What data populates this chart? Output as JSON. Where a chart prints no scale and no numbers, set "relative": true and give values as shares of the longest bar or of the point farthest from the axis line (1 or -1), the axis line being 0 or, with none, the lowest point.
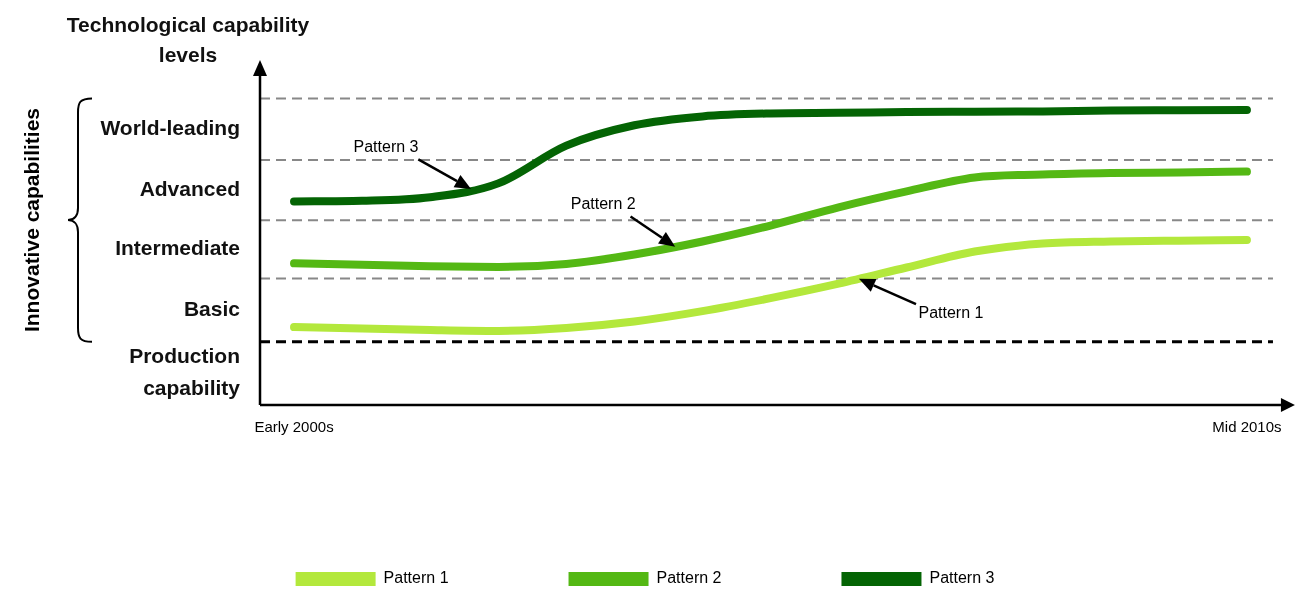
{
  "chart_data": {
    "type": "line",
    "ylabel": "Technological capability levels",
    "relative": true,
    "categories": [
      "Early 2000s",
      null,
      null,
      null,
      null,
      null,
      null,
      null,
      null,
      null,
      null,
      null,
      null,
      null,
      "Mid 2010s"
    ],
    "series": [
      {
        "name": "Pattern 1",
        "color": "#b3e83c",
        "values": [
          0.264,
          0.259,
          0.254,
          0.251,
          0.261,
          0.283,
          0.318,
          0.362,
          0.411,
          0.466,
          0.52,
          0.547,
          0.554,
          0.557,
          0.559
        ]
      },
      {
        "name": "Pattern 2",
        "color": "#54b814",
        "values": [
          0.48,
          0.475,
          0.47,
          0.468,
          0.478,
          0.51,
          0.554,
          0.608,
          0.67,
          0.724,
          0.771,
          0.781,
          0.786,
          0.788,
          0.791
        ]
      },
      {
        "name": "Pattern 3",
        "color": "#046404",
        "values": [
          0.69,
          0.692,
          0.704,
          0.751,
          0.879,
          0.948,
          0.978,
          0.988,
          0.99,
          0.993,
          0.994,
          0.995,
          0.998,
          0.999,
          1
        ]
      }
    ],
    "ref_lines": [
      {
        "axis": "y",
        "value": 0.214,
        "color": "#000000",
        "line_style": "dashed"
      },
      {
        "axis": "y",
        "value": 0.429,
        "color": "#888888",
        "line_style": "dashed"
      },
      {
        "axis": "y",
        "value": 0.626,
        "color": "#888888",
        "line_style": "dashed"
      },
      {
        "axis": "y",
        "value": 0.83,
        "color": "#888888",
        "line_style": "dashed"
      },
      {
        "axis": "y",
        "value": 1.039,
        "color": "#888888",
        "line_style": "dashed"
      }
    ],
    "annotations": [
      "Pattern 1",
      "Pattern 2",
      "Pattern 3",
      "Production capability",
      "Basic",
      "Intermediate",
      "Advanced",
      "World-leading",
      "Innovative capabilities"
    ],
    "grid": false,
    "legend": "bottom",
    "marker": "none",
    "line_style": "solid"
  }
}
